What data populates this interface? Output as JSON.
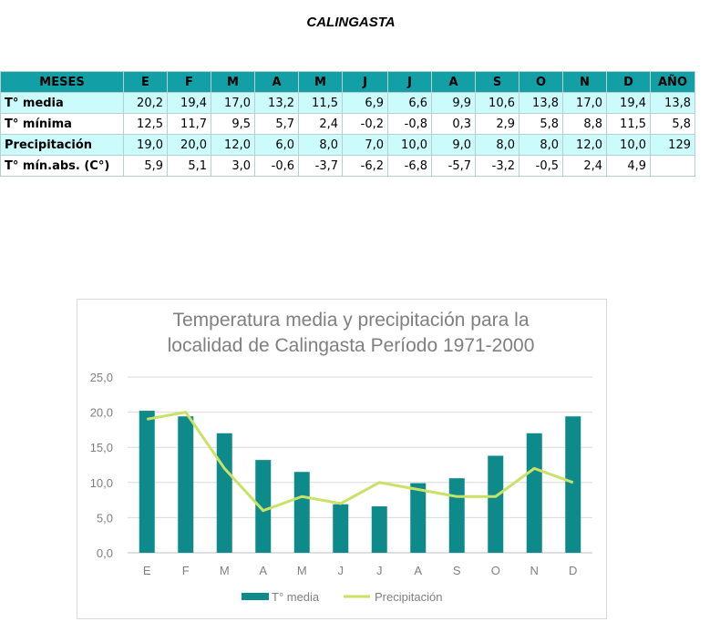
{
  "page_title": "CALINGASTA",
  "table": {
    "headers": [
      "MESES",
      "E",
      "F",
      "M",
      "A",
      "M",
      "J",
      "J",
      "A",
      "S",
      "O",
      "N",
      "D",
      "AÑO"
    ],
    "rows": [
      {
        "label": "T° media",
        "values": [
          "20,2",
          "19,4",
          "17,0",
          "13,2",
          "11,5",
          "6,9",
          "6,6",
          "9,9",
          "10,6",
          "13,8",
          "17,0",
          "19,4",
          "13,8"
        ]
      },
      {
        "label": "T° mínima",
        "values": [
          "12,5",
          "11,7",
          "9,5",
          "5,7",
          "2,4",
          "-0,2",
          "-0,8",
          "0,3",
          "2,9",
          "5,8",
          "8,8",
          "11,5",
          "5,8"
        ]
      },
      {
        "label": "Precipitación",
        "values": [
          "19,0",
          "20,0",
          "12,0",
          "6,0",
          "8,0",
          "7,0",
          "10,0",
          "9,0",
          "8,0",
          "8,0",
          "12,0",
          "10,0",
          "129"
        ]
      },
      {
        "label": "T° mín.abs. (C°)",
        "values": [
          "5,9",
          "5,1",
          "3,0",
          "-0,6",
          "-3,7",
          "-6,2",
          "-6,8",
          "-5,7",
          "-3,2",
          "-0,5",
          "2,4",
          "4,9",
          ""
        ]
      }
    ]
  },
  "colors": {
    "header_bg": "#12a0a6",
    "row_alt": "#ccfbfb",
    "bar": "#0e8a8a",
    "line": "#c9e265",
    "grid": "#d9d9d9",
    "axis_text": "#7f7f7f"
  },
  "chart_data": {
    "type": "bar",
    "title_lines": [
      "Temperatura media y precipitación para la",
      "localidad de Calingasta Período 1971-2000"
    ],
    "categories": [
      "E",
      "F",
      "M",
      "A",
      "M",
      "J",
      "J",
      "A",
      "S",
      "O",
      "N",
      "D"
    ],
    "series": [
      {
        "name": "T° media",
        "type": "bar",
        "values": [
          20.2,
          19.4,
          17.0,
          13.2,
          11.5,
          6.9,
          6.6,
          9.9,
          10.6,
          13.8,
          17.0,
          19.4
        ]
      },
      {
        "name": "Precipitación",
        "type": "line",
        "values": [
          19.0,
          20.0,
          12.0,
          6.0,
          8.0,
          7.0,
          10.0,
          9.0,
          8.0,
          8.0,
          12.0,
          10.0
        ]
      }
    ],
    "yticks": [
      "0,0",
      "5,0",
      "10,0",
      "15,0",
      "20,0",
      "25,0"
    ],
    "ylim": [
      0,
      25
    ],
    "grid": true,
    "legend": "bottom"
  }
}
